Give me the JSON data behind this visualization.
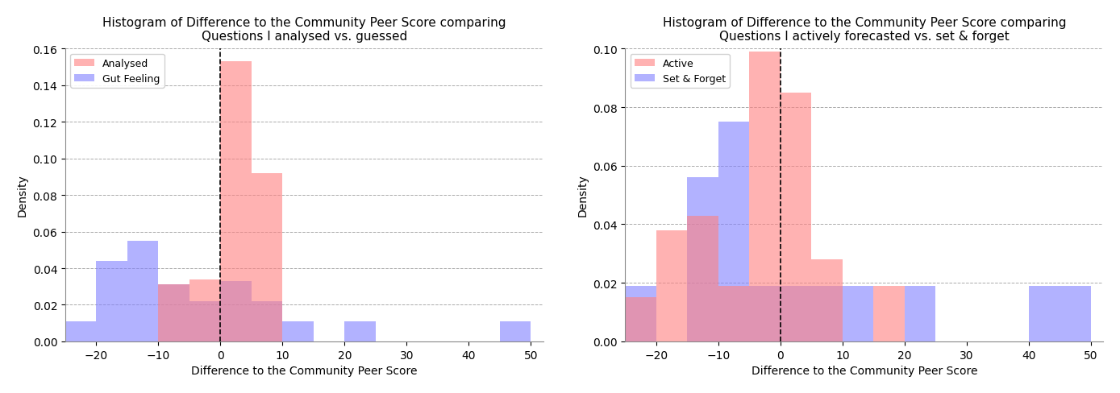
{
  "chart1": {
    "title": "Histogram of Difference to the Community Peer Score comparing\nQuestions I analysed vs. guessed",
    "xlabel": "Difference to the Community Peer Score",
    "ylabel": "Density",
    "ylim": [
      0,
      0.16
    ],
    "yticks": [
      0.0,
      0.02,
      0.04,
      0.06,
      0.08,
      0.1,
      0.12,
      0.14,
      0.16
    ],
    "xlim": [
      -25,
      52
    ],
    "xticks": [
      -20,
      -10,
      0,
      10,
      20,
      30,
      40,
      50
    ],
    "legend1": "Analysed",
    "legend2": "Gut Feeling",
    "color1": "#FF8080",
    "color2": "#8080FF",
    "alpha": 0.6,
    "bin_edges": [
      -25,
      -20,
      -15,
      -10,
      -5,
      0,
      5,
      10,
      15,
      20,
      25,
      30,
      35,
      40,
      45,
      50
    ],
    "series1": [
      0.0,
      0.0,
      0.0,
      0.031,
      0.034,
      0.153,
      0.092,
      0.0,
      0.0,
      0.0,
      0.0,
      0.0,
      0.0,
      0.0,
      0.0
    ],
    "series2": [
      0.011,
      0.044,
      0.055,
      0.031,
      0.022,
      0.033,
      0.022,
      0.011,
      0.0,
      0.011,
      0.0,
      0.0,
      0.0,
      0.0,
      0.011
    ]
  },
  "chart2": {
    "title": "Histogram of Difference to the Community Peer Score comparing\nQuestions I actively forecasted vs. set & forget",
    "xlabel": "Difference to the Community Peer Score",
    "ylabel": "Density",
    "ylim": [
      0,
      0.1
    ],
    "yticks": [
      0.0,
      0.02,
      0.04,
      0.06,
      0.08,
      0.1
    ],
    "xlim": [
      -25,
      52
    ],
    "xticks": [
      -20,
      -10,
      0,
      10,
      20,
      30,
      40,
      50
    ],
    "legend1": "Active",
    "legend2": "Set & Forget",
    "color1": "#FF8080",
    "color2": "#8080FF",
    "alpha": 0.6,
    "bin_edges": [
      -25,
      -20,
      -15,
      -10,
      -5,
      0,
      5,
      10,
      15,
      20,
      25,
      30,
      35,
      40,
      45,
      50
    ],
    "series1": [
      0.015,
      0.038,
      0.043,
      0.019,
      0.099,
      0.085,
      0.028,
      0.0,
      0.019,
      0.0,
      0.0,
      0.0,
      0.0,
      0.0,
      0.0
    ],
    "series2": [
      0.019,
      0.0,
      0.056,
      0.075,
      0.019,
      0.019,
      0.019,
      0.019,
      0.0,
      0.019,
      0.0,
      0.0,
      0.0,
      0.019,
      0.019
    ]
  },
  "vline_x": 0,
  "bg_color": "#ffffff",
  "figsize": [
    13.89,
    4.89
  ],
  "dpi": 100
}
